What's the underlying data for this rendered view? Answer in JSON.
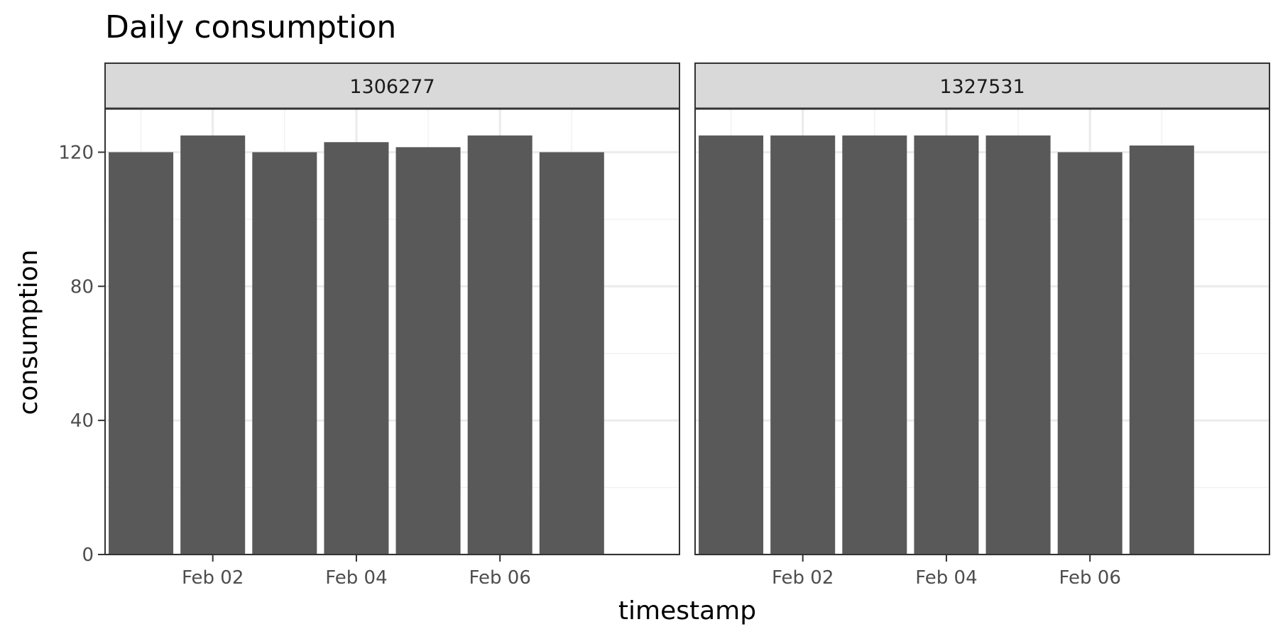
{
  "chart_data": {
    "type": "bar",
    "title": "Daily consumption",
    "xlabel": "timestamp",
    "ylabel": "consumption",
    "ylim": [
      0,
      133
    ],
    "yticks": [
      0,
      40,
      80,
      120
    ],
    "xlim": [
      "2024-01-31 12:00",
      "2024-02-08 12:00"
    ],
    "xticks": [
      {
        "date": "2024-02-02",
        "label": "Feb 02"
      },
      {
        "date": "2024-02-04",
        "label": "Feb 04"
      },
      {
        "date": "2024-02-06",
        "label": "Feb 06"
      }
    ],
    "x": [
      "2024-02-01",
      "2024-02-02",
      "2024-02-03",
      "2024-02-04",
      "2024-02-05",
      "2024-02-06",
      "2024-02-07"
    ],
    "bar_color": "#595959",
    "grid": true,
    "legend": "none",
    "facets": [
      {
        "label": "1306277",
        "values": [
          120,
          125,
          120,
          123,
          121.5,
          125,
          120
        ]
      },
      {
        "label": "1327531",
        "values": [
          125,
          125,
          125,
          125,
          125,
          120,
          122
        ]
      }
    ]
  }
}
